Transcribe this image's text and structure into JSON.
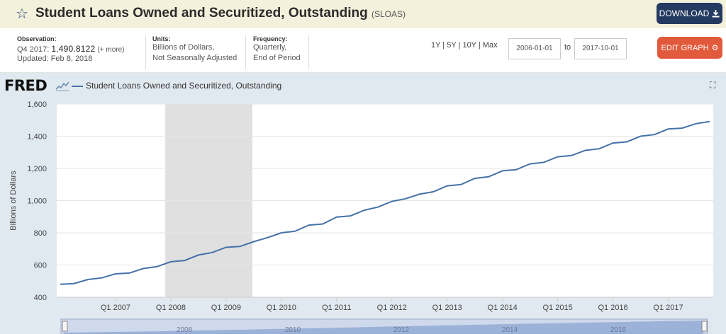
{
  "header": {
    "title": "Student Loans Owned and Securitized, Outstanding",
    "series_code": "(SLOAS)",
    "download_label": "DOWNLOAD",
    "star_icon": "star-icon",
    "download_icon": "download-icon"
  },
  "info": {
    "observation_label": "Observation:",
    "observation_period": "Q4 2017:",
    "observation_value": "1,490.8122",
    "observation_more": "(+ more)",
    "updated": "Updated: Feb 8, 2018",
    "units_label": "Units:",
    "units_line1": "Billions of Dollars,",
    "units_line2": "Not Seasonally Adjusted",
    "frequency_label": "Frequency:",
    "frequency_line1": "Quarterly,",
    "frequency_line2": "End of Period"
  },
  "controls": {
    "range_links": "1Y | 5Y | 10Y | Max",
    "start_date": "2006-01-01",
    "to_label": "to",
    "end_date": "2017-10-01",
    "edit_label": "EDIT GRAPH",
    "edit_icon": "gear-icon"
  },
  "chart_panel": {
    "logo": "FRED",
    "legend": "Student Loans Owned and Securitized, Outstanding",
    "fullscreen_icon": "fullscreen-icon",
    "line_color": "#4572a7",
    "recession_color": "#e0e0e0",
    "navigator_labels": [
      "2008",
      "2010",
      "2012",
      "2014",
      "2016"
    ]
  },
  "chart_data": {
    "type": "line",
    "title": "Student Loans Owned and Securitized, Outstanding",
    "xlabel": "",
    "ylabel": "Billions of Dollars",
    "ylim": [
      400,
      1600
    ],
    "yticks": [
      400,
      600,
      800,
      1000,
      1200,
      1400,
      1600
    ],
    "ytick_labels": [
      "400",
      "600",
      "800",
      "1,000",
      "1,200",
      "1,400",
      "1,600"
    ],
    "xtick_labels": [
      "Q1 2007",
      "Q1 2008",
      "Q1 2009",
      "Q1 2010",
      "Q1 2011",
      "Q1 2012",
      "Q1 2013",
      "Q1 2014",
      "Q1 2015",
      "Q1 2016",
      "Q1 2017"
    ],
    "xtick_quarter_index": [
      4,
      8,
      12,
      16,
      20,
      24,
      28,
      32,
      36,
      40,
      44
    ],
    "recession": {
      "start_index": 7.6,
      "end_index": 13.9
    },
    "grid": true,
    "x_start": "Q1 2006",
    "series": [
      {
        "name": "Student Loans Owned and Securitized, Outstanding",
        "values": [
          480,
          485,
          510,
          520,
          545,
          550,
          578,
          590,
          620,
          628,
          662,
          678,
          710,
          715,
          745,
          770,
          800,
          810,
          848,
          855,
          898,
          905,
          940,
          960,
          995,
          1012,
          1040,
          1055,
          1092,
          1100,
          1138,
          1148,
          1185,
          1192,
          1228,
          1238,
          1272,
          1280,
          1312,
          1322,
          1358,
          1365,
          1400,
          1410,
          1445,
          1450,
          1478,
          1490.8122
        ]
      }
    ]
  }
}
